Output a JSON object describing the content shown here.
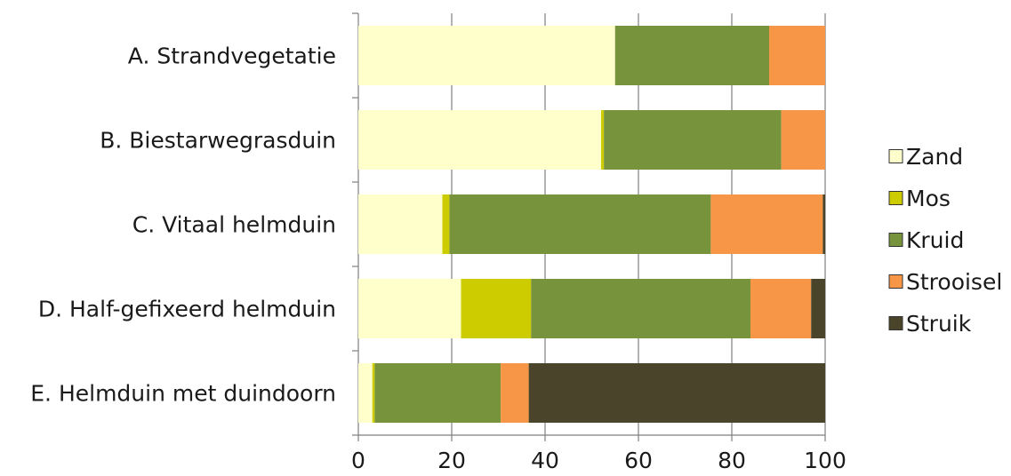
{
  "chart_data": {
    "type": "bar",
    "orientation": "horizontal",
    "stacked": true,
    "categories": [
      "A. Strandvegetatie",
      "B. Biestarwegrasduin",
      "C. Vitaal helmduin",
      "D. Half-gefixeerd helmduin",
      "E. Helmduin met duindoorn"
    ],
    "series": [
      {
        "name": "Zand",
        "color": "#FFFFCC",
        "values": [
          55,
          52,
          18,
          22,
          3
        ]
      },
      {
        "name": "Mos",
        "color": "#CCCC00",
        "values": [
          0,
          0.6,
          1.5,
          15,
          0.5
        ]
      },
      {
        "name": "Kruid",
        "color": "#77933C",
        "values": [
          33,
          38,
          56,
          47,
          27
        ]
      },
      {
        "name": "Strooisel",
        "color": "#F79646",
        "values": [
          12,
          9.4,
          24,
          13,
          6
        ]
      },
      {
        "name": "Struik",
        "color": "#4A452A",
        "values": [
          0,
          0,
          0.5,
          3,
          63.5
        ]
      }
    ],
    "xlim": [
      0,
      100
    ],
    "xticks": [
      "0",
      "20",
      "40",
      "60",
      "80",
      "100"
    ],
    "grid": true,
    "legend_position": "right",
    "title": "",
    "xlabel": "",
    "ylabel": ""
  }
}
